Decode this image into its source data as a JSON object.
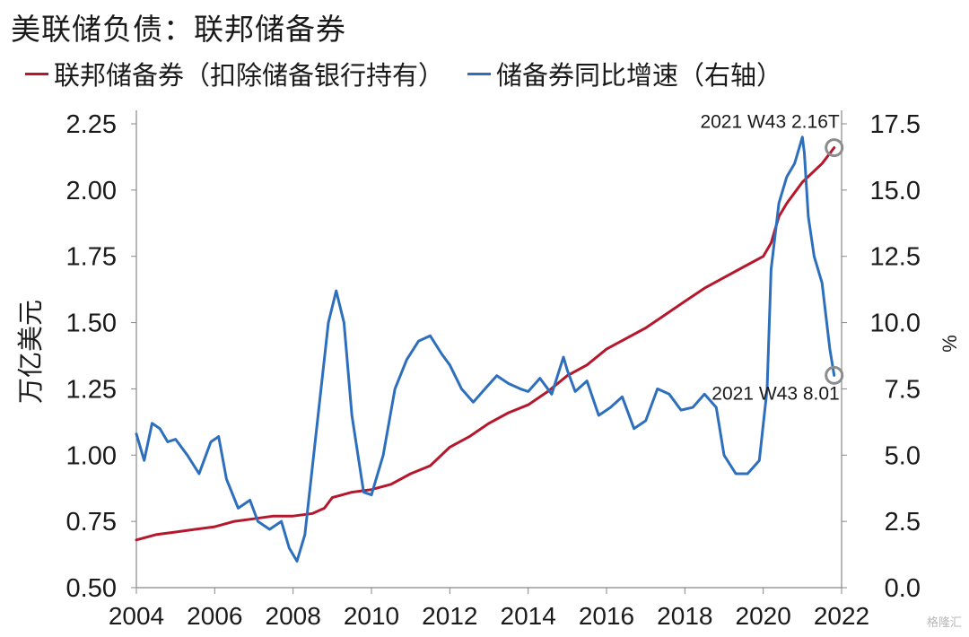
{
  "title": "美联储负债：联邦储备券",
  "colors": {
    "red": "#b5182d",
    "blue": "#2e6fbd",
    "axis": "#888888",
    "marker": "#8c8c8c"
  },
  "legend": [
    {
      "label": "联邦储备券（扣除储备银行持有）",
      "color": "#b5182d"
    },
    {
      "label": "储备券同比增速（右轴）",
      "color": "#2e6fbd"
    }
  ],
  "watermark": "格隆汇",
  "chart_data": {
    "type": "line",
    "ylabel": "万亿美元",
    "y2label": "%",
    "xlim": [
      2004,
      2022
    ],
    "ylim": [
      0.5,
      2.25
    ],
    "y2lim": [
      0,
      17.5
    ],
    "xticks": [
      "2004",
      "2006",
      "2008",
      "2010",
      "2012",
      "2014",
      "2016",
      "2018",
      "2020",
      "2022"
    ],
    "yticks": [
      "0.50",
      "0.75",
      "1.00",
      "1.25",
      "1.50",
      "1.75",
      "2.00",
      "2.25"
    ],
    "y2ticks": [
      "0.0",
      "2.5",
      "5.0",
      "7.5",
      "10.0",
      "12.5",
      "15.0",
      "17.5"
    ],
    "grid": false,
    "legend_position": "top",
    "series": [
      {
        "name": "联邦储备券（扣除储备银行持有）",
        "axis": "left",
        "color": "#b5182d",
        "x": [
          2004.0,
          2004.5,
          2005.0,
          2005.5,
          2006.0,
          2006.5,
          2007.0,
          2007.5,
          2008.0,
          2008.5,
          2008.8,
          2009.0,
          2009.5,
          2010.0,
          2010.5,
          2011.0,
          2011.5,
          2012.0,
          2012.5,
          2013.0,
          2013.5,
          2014.0,
          2014.5,
          2015.0,
          2015.5,
          2016.0,
          2016.5,
          2017.0,
          2017.5,
          2018.0,
          2018.5,
          2019.0,
          2019.5,
          2020.0,
          2020.2,
          2020.4,
          2020.6,
          2021.0,
          2021.5,
          2021.81
        ],
        "values": [
          0.68,
          0.7,
          0.71,
          0.72,
          0.73,
          0.75,
          0.76,
          0.77,
          0.77,
          0.78,
          0.8,
          0.84,
          0.86,
          0.87,
          0.89,
          0.93,
          0.96,
          1.03,
          1.07,
          1.12,
          1.16,
          1.19,
          1.24,
          1.3,
          1.34,
          1.4,
          1.44,
          1.48,
          1.53,
          1.58,
          1.63,
          1.67,
          1.71,
          1.75,
          1.8,
          1.9,
          1.95,
          2.03,
          2.1,
          2.16
        ]
      },
      {
        "name": "储备券同比增速（右轴）",
        "axis": "right",
        "color": "#2e6fbd",
        "x": [
          2004.0,
          2004.2,
          2004.4,
          2004.6,
          2004.8,
          2005.0,
          2005.3,
          2005.6,
          2005.9,
          2006.1,
          2006.3,
          2006.6,
          2006.9,
          2007.1,
          2007.4,
          2007.7,
          2007.9,
          2008.1,
          2008.3,
          2008.6,
          2008.9,
          2009.1,
          2009.3,
          2009.5,
          2009.8,
          2010.0,
          2010.3,
          2010.6,
          2010.9,
          2011.2,
          2011.5,
          2011.8,
          2012.0,
          2012.3,
          2012.6,
          2012.9,
          2013.2,
          2013.5,
          2013.8,
          2014.0,
          2014.3,
          2014.6,
          2014.9,
          2015.0,
          2015.2,
          2015.5,
          2015.8,
          2016.1,
          2016.4,
          2016.7,
          2017.0,
          2017.3,
          2017.6,
          2017.9,
          2018.2,
          2018.5,
          2018.8,
          2019.0,
          2019.3,
          2019.6,
          2019.9,
          2020.1,
          2020.2,
          2020.4,
          2020.6,
          2020.8,
          2021.0,
          2021.05,
          2021.15,
          2021.3,
          2021.5,
          2021.7,
          2021.81
        ],
        "values": [
          5.8,
          4.8,
          6.2,
          6.0,
          5.5,
          5.6,
          5.0,
          4.3,
          5.5,
          5.7,
          4.1,
          3.0,
          3.3,
          2.5,
          2.2,
          2.5,
          1.5,
          1.0,
          2.0,
          6.0,
          10.0,
          11.2,
          10.0,
          6.5,
          3.6,
          3.5,
          5.0,
          7.5,
          8.6,
          9.3,
          9.5,
          8.8,
          8.4,
          7.5,
          7.0,
          7.5,
          8.0,
          7.7,
          7.5,
          7.4,
          7.9,
          7.3,
          8.7,
          8.2,
          7.4,
          7.8,
          6.5,
          6.8,
          7.2,
          6.0,
          6.3,
          7.5,
          7.3,
          6.7,
          6.8,
          7.3,
          6.8,
          5.0,
          4.3,
          4.3,
          4.8,
          7.5,
          12.0,
          14.5,
          15.5,
          16.0,
          17.0,
          16.4,
          14.0,
          12.5,
          11.5,
          9.0,
          8.01
        ]
      }
    ],
    "annotations": [
      {
        "text": "2021 W43 2.16T",
        "x": 2021.81,
        "y": 2.16,
        "axis": "left"
      },
      {
        "text": "2021 W43 8.01",
        "x": 2021.81,
        "y": 8.01,
        "axis": "right"
      }
    ]
  }
}
